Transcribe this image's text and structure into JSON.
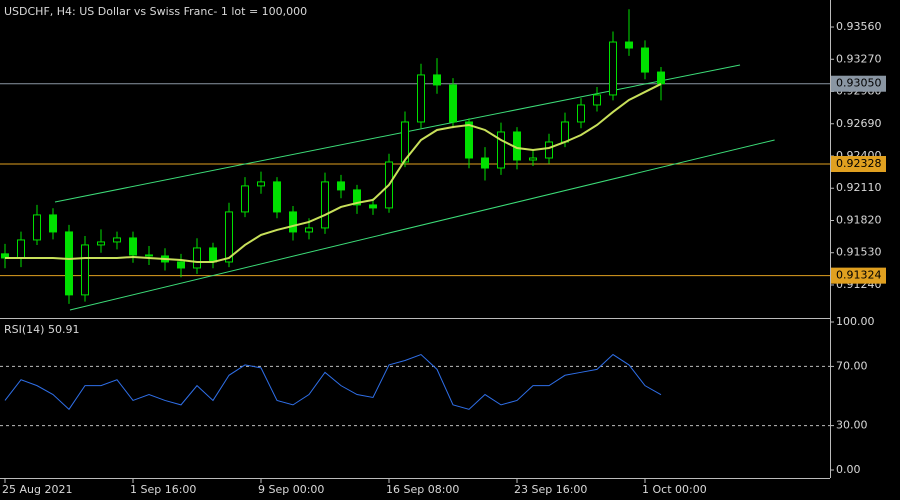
{
  "chart_data": [
    {
      "type": "candlestick",
      "title": "USDCHF, H4:  US Dollar vs Swiss Franc- 1 lot = 100,000",
      "categories": [
        "25 Aug 2021",
        null,
        null,
        null,
        null,
        null,
        null,
        null,
        "1 Sep 16:00",
        null,
        null,
        null,
        null,
        null,
        null,
        null,
        "9 Sep 00:00",
        null,
        null,
        null,
        null,
        null,
        null,
        null,
        "16 Sep 08:00",
        null,
        null,
        null,
        null,
        null,
        null,
        null,
        "23 Sep 16:00",
        null,
        null,
        null,
        null,
        null,
        null,
        null,
        "1 Oct 00:00",
        null
      ],
      "open": [
        0.9152,
        0.91483,
        0.91645,
        0.9187,
        0.91717,
        0.91151,
        0.916,
        0.91627,
        0.91663,
        0.9151,
        0.91501,
        0.91447,
        0.91393,
        0.91573,
        0.91447,
        0.91897,
        0.92131,
        0.92167,
        0.91897,
        0.91717,
        0.91753,
        0.92167,
        0.92095,
        0.9196,
        0.91933,
        0.92346,
        0.92706,
        0.93129,
        0.93039,
        0.92706,
        0.92382,
        0.92292,
        0.92616,
        0.92364,
        0.92382,
        0.92526,
        0.92706,
        0.92859,
        0.92949,
        0.93425,
        0.93371,
        0.93155
      ],
      "high": [
        0.9161,
        0.9172,
        0.9196,
        0.9193,
        0.9178,
        0.9168,
        0.9174,
        0.9172,
        0.9172,
        0.9159,
        0.9157,
        0.9152,
        0.9166,
        0.9162,
        0.9198,
        0.9221,
        0.9226,
        0.9221,
        0.9195,
        0.9184,
        0.9225,
        0.9223,
        0.9214,
        0.9202,
        0.9242,
        0.928,
        0.9323,
        0.9328,
        0.931,
        0.9274,
        0.9248,
        0.927,
        0.9266,
        0.9245,
        0.926,
        0.9279,
        0.9292,
        0.9302,
        0.9352,
        0.9372,
        0.9344,
        0.932
      ],
      "low": [
        0.9139,
        0.914,
        0.916,
        0.9165,
        0.9107,
        0.9109,
        0.9153,
        0.9156,
        0.9144,
        0.9142,
        0.9137,
        0.9131,
        0.9134,
        0.9139,
        0.914,
        0.9185,
        0.9206,
        0.9184,
        0.9164,
        0.9165,
        0.917,
        0.9202,
        0.9188,
        0.9187,
        0.9189,
        0.923,
        0.9265,
        0.9296,
        0.9265,
        0.9229,
        0.9218,
        0.9223,
        0.9228,
        0.9231,
        0.9233,
        0.9248,
        0.9265,
        0.928,
        0.929,
        0.933,
        0.9309,
        0.929
      ],
      "close": [
        0.91483,
        0.91645,
        0.9187,
        0.91717,
        0.91151,
        0.916,
        0.91627,
        0.91663,
        0.9151,
        0.91501,
        0.91447,
        0.91393,
        0.91573,
        0.91447,
        0.91897,
        0.92131,
        0.92167,
        0.91897,
        0.91717,
        0.91753,
        0.92167,
        0.92095,
        0.9196,
        0.91933,
        0.92346,
        0.92706,
        0.93129,
        0.93039,
        0.92706,
        0.92382,
        0.92292,
        0.92616,
        0.92364,
        0.92382,
        0.92526,
        0.92706,
        0.92859,
        0.92949,
        0.93425,
        0.93371,
        0.93155,
        0.9305
      ],
      "color": "#00e000",
      "ma": {
        "color": "#c8e05a",
        "values": [
          0.91483,
          0.91483,
          0.91483,
          0.91483,
          0.91474,
          0.91483,
          0.91483,
          0.91483,
          0.91492,
          0.91483,
          0.91474,
          0.91465,
          0.91447,
          0.91447,
          0.91483,
          0.916,
          0.9169,
          0.91735,
          0.91771,
          0.91807,
          0.9187,
          0.91942,
          0.91978,
          0.92005,
          0.9214,
          0.92364,
          0.92544,
          0.92634,
          0.92661,
          0.92679,
          0.92634,
          0.92544,
          0.92472,
          0.92454,
          0.92472,
          0.92526,
          0.92589,
          0.92679,
          0.92796,
          0.92904,
          0.92976,
          0.93048
        ]
      },
      "trendlines": [
        {
          "color": "#3cdc78",
          "x": [
            3.125,
            45.94
          ],
          "y": [
            0.91986,
            0.93218
          ]
        },
        {
          "color": "#3cdc78",
          "x": [
            4.06,
            48.1
          ],
          "y": [
            0.91015,
            0.92544
          ]
        }
      ],
      "levels": [
        {
          "value": 0.9305,
          "label": "0.93050",
          "color": "#8a96a3"
        },
        {
          "value": 0.92328,
          "label": "0.92328",
          "color": "#e0a020"
        },
        {
          "value": 0.91324,
          "label": "0.91324",
          "color": "#e0a020"
        }
      ],
      "ylim": [
        0.90943,
        0.93803
      ],
      "yticks": [
        {
          "value": 0.9356,
          "label": "0.93560"
        },
        {
          "value": 0.9327,
          "label": "0.93270"
        },
        {
          "value": 0.9298,
          "label": "0.92980"
        },
        {
          "value": 0.9269,
          "label": "0.92690"
        },
        {
          "value": 0.924,
          "label": "0.92400"
        },
        {
          "value": 0.9211,
          "label": "0.92110"
        },
        {
          "value": 0.9182,
          "label": "0.91820"
        },
        {
          "value": 0.9153,
          "label": "0.91530"
        },
        {
          "value": 0.9124,
          "label": "0.91240"
        }
      ]
    },
    {
      "type": "line",
      "title": "RSI(14) 50.91",
      "color": "#2f6fe8",
      "values": [
        47,
        61,
        57,
        51,
        41,
        57,
        57,
        61,
        47,
        51,
        47,
        44,
        57,
        47,
        64,
        71,
        69,
        47,
        44,
        51,
        66,
        57,
        51,
        49,
        71,
        74,
        78,
        68,
        44,
        41,
        51,
        44,
        47,
        57,
        57,
        64,
        66,
        68,
        78,
        71,
        57,
        50.91
      ],
      "ylim": [
        0,
        100
      ],
      "yticks": [
        {
          "value": 100,
          "label": "100.00"
        },
        {
          "value": 70,
          "label": "70.00"
        },
        {
          "value": 30,
          "label": "30.00"
        },
        {
          "value": 0,
          "label": "0.00"
        }
      ],
      "dashed_levels": [
        70,
        30
      ]
    }
  ]
}
